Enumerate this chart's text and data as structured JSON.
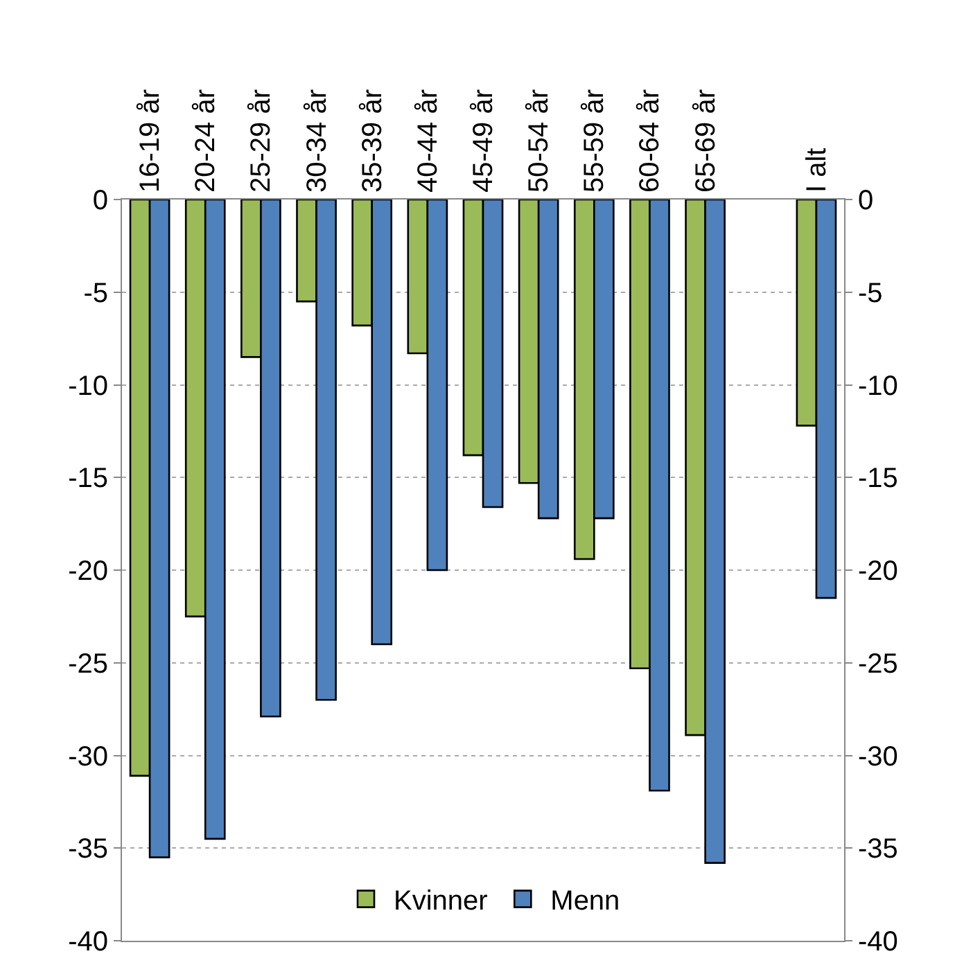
{
  "chart_data": {
    "type": "bar",
    "categories": [
      "16-19 år",
      "20-24 år",
      "25-29 år",
      "30-34 år",
      "35-39 år",
      "40-44 år",
      "45-49 år",
      "50-54 år",
      "55-59 år",
      "60-64 år",
      "65-69 år",
      null,
      "I alt"
    ],
    "series": [
      {
        "name": "Kvinner",
        "color": "#9bbb59",
        "values": [
          -31.1,
          -22.5,
          -8.5,
          -5.5,
          -6.8,
          -8.3,
          -13.8,
          -15.3,
          -19.4,
          -25.3,
          -28.9,
          null,
          -12.2
        ]
      },
      {
        "name": "Menn",
        "color": "#4f81bd",
        "values": [
          -35.5,
          -34.5,
          -27.9,
          -27.0,
          -24.0,
          -20.0,
          -16.6,
          -17.2,
          -17.2,
          -31.9,
          -35.8,
          null,
          -21.5
        ]
      }
    ],
    "ylim": [
      -40,
      0
    ],
    "yticks": [
      -40,
      -35,
      -30,
      -25,
      -20,
      -15,
      -10,
      -5,
      0
    ],
    "y2lim": [
      -40,
      0
    ],
    "y2ticks": [
      -40,
      -35,
      -30,
      -25,
      -20,
      -15,
      -10,
      -5,
      0
    ],
    "grid": "y",
    "legend": "bottom"
  }
}
